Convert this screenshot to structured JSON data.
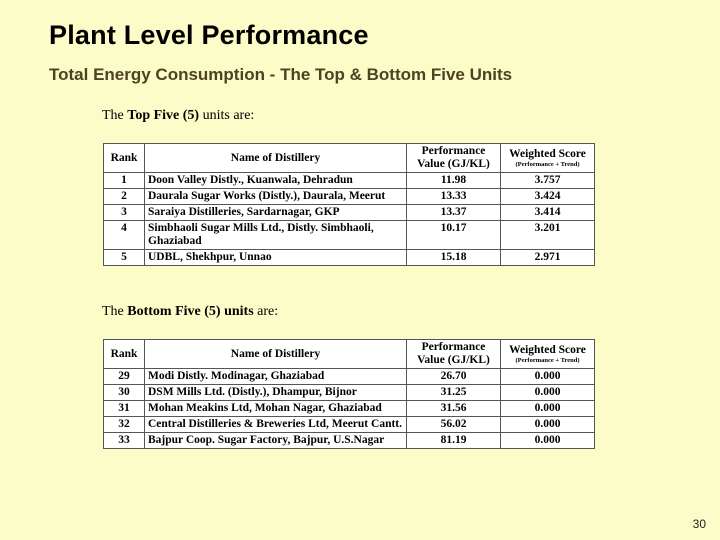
{
  "title": "Plant Level Performance",
  "subtitle": "Total Energy Consumption - The Top & Bottom Five Units",
  "top": {
    "intro_prefix": "The ",
    "intro_bold": "Top Five (5)",
    "intro_suffix": " units are:",
    "headers": {
      "rank": "Rank",
      "name": "Name of Distillery",
      "perf": "Performance Value (GJ/KL)",
      "score": "Weighted Score",
      "score_sub": "(Performance + Trend)"
    },
    "rows": [
      {
        "rank": "1",
        "name": "Doon Valley Distly., Kuanwala, Dehradun",
        "perf": "11.98",
        "score": "3.757"
      },
      {
        "rank": "2",
        "name": "Daurala Sugar Works (Distly.), Daurala, Meerut",
        "perf": "13.33",
        "score": "3.424"
      },
      {
        "rank": "3",
        "name": "Saraiya Distilleries, Sardarnagar, GKP",
        "perf": "13.37",
        "score": "3.414"
      },
      {
        "rank": "4",
        "name": "Simbhaoli Sugar Mills Ltd., Distly. Simbhaoli, Ghaziabad",
        "perf": "10.17",
        "score": "3.201"
      },
      {
        "rank": "5",
        "name": "UDBL, Shekhpur, Unnao",
        "perf": "15.18",
        "score": "2.971"
      }
    ]
  },
  "bottom": {
    "intro_prefix": "The ",
    "intro_bold": "Bottom Five (5) units",
    "intro_suffix": " are:",
    "headers": {
      "rank": "Rank",
      "name": "Name of Distillery",
      "perf": "Performance Value (GJ/KL)",
      "score": "Weighted Score",
      "score_sub": "(Performance + Trend)"
    },
    "rows": [
      {
        "rank": "29",
        "name": "Modi Distly. Modinagar, Ghaziabad",
        "perf": "26.70",
        "score": "0.000"
      },
      {
        "rank": "30",
        "name": "DSM Mills Ltd. (Distly.), Dhampur, Bijnor",
        "perf": "31.25",
        "score": "0.000"
      },
      {
        "rank": "31",
        "name": "Mohan Meakins Ltd, Mohan Nagar, Ghaziabad",
        "perf": "31.56",
        "score": "0.000"
      },
      {
        "rank": "32",
        "name": "Central Distilleries & Breweries Ltd, Meerut Cantt.",
        "perf": "56.02",
        "score": "0.000"
      },
      {
        "rank": "33",
        "name": "Bajpur Coop. Sugar Factory, Bajpur, U.S.Nagar",
        "perf": "81.19",
        "score": "0.000"
      }
    ]
  },
  "slide_number": "30"
}
